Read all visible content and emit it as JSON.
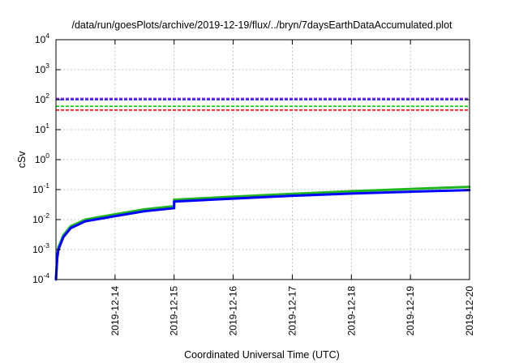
{
  "chart_data": {
    "type": "line",
    "title": "/data/run/goesPlots/archive/2019-12-19/flux/../bryn/7daysEarthDataAccumulated.plot",
    "xlabel": "Coordinated Universal Time (UTC)",
    "ylabel": "cSv",
    "yscale": "log",
    "ylim": [
      0.0001,
      10000
    ],
    "xlim": [
      "2019-12-13T00:00",
      "2019-12-20T00:00"
    ],
    "grid": true,
    "y_ticks": [
      {
        "value": 0.0001,
        "base": "10",
        "exp": "-4"
      },
      {
        "value": 0.001,
        "base": "10",
        "exp": "-3"
      },
      {
        "value": 0.01,
        "base": "10",
        "exp": "-2"
      },
      {
        "value": 0.1,
        "base": "10",
        "exp": "-1"
      },
      {
        "value": 1,
        "base": "10",
        "exp": "0"
      },
      {
        "value": 10,
        "base": "10",
        "exp": "1"
      },
      {
        "value": 100,
        "base": "10",
        "exp": "2"
      },
      {
        "value": 1000,
        "base": "10",
        "exp": "3"
      },
      {
        "value": 10000,
        "base": "10",
        "exp": "4"
      }
    ],
    "x_ticks": [
      "2019-12-14",
      "2019-12-15",
      "2019-12-16",
      "2019-12-17",
      "2019-12-18",
      "2019-12-19",
      "2019-12-20"
    ],
    "threshold_lines": [
      {
        "y": 110,
        "color": "#8a2be2"
      },
      {
        "y": 100,
        "color": "#0000ff"
      },
      {
        "y": 60,
        "color": "#00cc00"
      },
      {
        "y": 45,
        "color": "#ff0000"
      }
    ],
    "series": [
      {
        "color": "#1fb51f",
        "x": [
          "2019-12-13T00:00",
          "2019-12-13T00:30",
          "2019-12-13T01:00",
          "2019-12-13T03:00",
          "2019-12-13T06:00",
          "2019-12-13T12:00",
          "2019-12-14T00:00",
          "2019-12-14T12:00",
          "2019-12-15T00:00",
          "2019-12-15T00:01",
          "2019-12-16T00:00",
          "2019-12-17T00:00",
          "2019-12-18T00:00",
          "2019-12-19T00:00",
          "2019-12-20T00:00"
        ],
        "y": [
          0.0001,
          0.0006,
          0.0012,
          0.003,
          0.006,
          0.01,
          0.015,
          0.022,
          0.028,
          0.046,
          0.058,
          0.072,
          0.088,
          0.105,
          0.123
        ]
      },
      {
        "color": "#0000ff",
        "x": [
          "2019-12-13T00:00",
          "2019-12-13T00:30",
          "2019-12-13T01:00",
          "2019-12-13T03:00",
          "2019-12-13T06:00",
          "2019-12-13T12:00",
          "2019-12-14T00:00",
          "2019-12-14T12:00",
          "2019-12-15T00:00",
          "2019-12-15T00:01",
          "2019-12-16T00:00",
          "2019-12-17T00:00",
          "2019-12-18T00:00",
          "2019-12-19T00:00",
          "2019-12-20T00:00"
        ],
        "y": [
          0.0001,
          0.0005,
          0.001,
          0.0026,
          0.0052,
          0.0088,
          0.013,
          0.019,
          0.024,
          0.04,
          0.05,
          0.062,
          0.074,
          0.085,
          0.096
        ]
      }
    ]
  }
}
